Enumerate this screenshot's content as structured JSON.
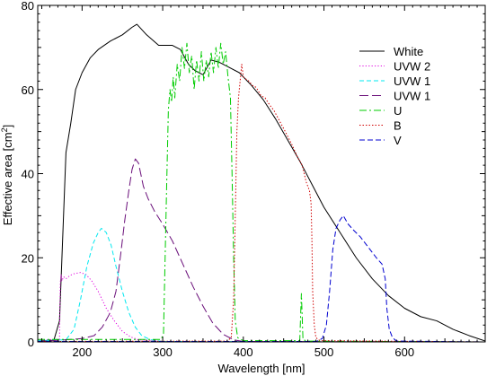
{
  "chart_data": {
    "type": "line",
    "xlabel": "Wavelength [nm]",
    "ylabel_main": "Effective area [cm",
    "ylabel_sup": "2",
    "ylabel_close": "]",
    "xlim": [
      145,
      700
    ],
    "ylim": [
      0,
      80
    ],
    "xticks": [
      200,
      300,
      400,
      500,
      600
    ],
    "yticks": [
      0,
      20,
      40,
      60,
      80
    ],
    "grid": false,
    "legend_position": "top-right",
    "series": [
      {
        "name": "White",
        "color": "#000000",
        "dash": "solid",
        "points": [
          [
            145,
            0.2
          ],
          [
            165,
            0.4
          ],
          [
            172,
            5
          ],
          [
            176,
            25
          ],
          [
            180,
            45
          ],
          [
            186,
            52
          ],
          [
            192,
            60
          ],
          [
            200,
            64
          ],
          [
            210,
            67.5
          ],
          [
            220,
            69.5
          ],
          [
            235,
            71.5
          ],
          [
            250,
            73
          ],
          [
            262,
            74.8
          ],
          [
            268,
            75.5
          ],
          [
            280,
            73
          ],
          [
            295,
            70.5
          ],
          [
            312,
            70.5
          ],
          [
            322,
            69.5
          ],
          [
            332,
            66
          ],
          [
            340,
            64.5
          ],
          [
            350,
            63.5
          ],
          [
            360,
            67
          ],
          [
            370,
            66.5
          ],
          [
            380,
            65.5
          ],
          [
            395,
            64
          ],
          [
            410,
            61
          ],
          [
            425,
            57.5
          ],
          [
            440,
            53
          ],
          [
            455,
            48
          ],
          [
            470,
            43
          ],
          [
            485,
            37.5
          ],
          [
            500,
            32
          ],
          [
            520,
            26
          ],
          [
            540,
            20
          ],
          [
            560,
            15
          ],
          [
            580,
            11
          ],
          [
            600,
            8
          ],
          [
            620,
            6
          ],
          [
            640,
            5
          ],
          [
            660,
            3
          ],
          [
            680,
            1.5
          ],
          [
            700,
            0.2
          ]
        ]
      },
      {
        "name": "UVW 2",
        "color": "#e000e0",
        "dash": "1.2,2.2",
        "points": [
          [
            145,
            0.5
          ],
          [
            172,
            0.6
          ],
          [
            173,
            14
          ],
          [
            174,
            16
          ],
          [
            175,
            14.5
          ],
          [
            177,
            15.5
          ],
          [
            180,
            15
          ],
          [
            185,
            15.8
          ],
          [
            190,
            16.2
          ],
          [
            198,
            16.5
          ],
          [
            205,
            16
          ],
          [
            212,
            14.5
          ],
          [
            220,
            12
          ],
          [
            230,
            8
          ],
          [
            240,
            5
          ],
          [
            250,
            2.5
          ],
          [
            260,
            1.2
          ],
          [
            270,
            0.5
          ],
          [
            300,
            0.1
          ],
          [
            700,
            0
          ]
        ]
      },
      {
        "name": "UVW 1",
        "color": "#00e8f0",
        "dash": "5,3",
        "points": [
          [
            145,
            0.3
          ],
          [
            180,
            0.5
          ],
          [
            190,
            3
          ],
          [
            198,
            10
          ],
          [
            206,
            18
          ],
          [
            214,
            23.5
          ],
          [
            220,
            26
          ],
          [
            224,
            27
          ],
          [
            230,
            26
          ],
          [
            236,
            23
          ],
          [
            242,
            18
          ],
          [
            250,
            12
          ],
          [
            258,
            7
          ],
          [
            266,
            3.5
          ],
          [
            274,
            1.5
          ],
          [
            285,
            0.5
          ],
          [
            300,
            0.1
          ],
          [
            700,
            0
          ]
        ]
      },
      {
        "name": "UVW 1",
        "color": "#6a0f7a",
        "dash": "10,4",
        "points": [
          [
            145,
            0.1
          ],
          [
            180,
            0.5
          ],
          [
            200,
            0.8
          ],
          [
            215,
            1.5
          ],
          [
            225,
            3.5
          ],
          [
            235,
            7
          ],
          [
            242,
            12
          ],
          [
            248,
            21
          ],
          [
            253,
            29
          ],
          [
            258,
            36
          ],
          [
            262,
            41
          ],
          [
            266,
            43.5
          ],
          [
            270,
            42.5
          ],
          [
            276,
            37
          ],
          [
            282,
            34
          ],
          [
            290,
            31
          ],
          [
            300,
            28
          ],
          [
            312,
            24
          ],
          [
            325,
            18.5
          ],
          [
            338,
            13
          ],
          [
            350,
            8.5
          ],
          [
            362,
            4.5
          ],
          [
            375,
            1.8
          ],
          [
            388,
            0.5
          ],
          [
            400,
            0.1
          ],
          [
            700,
            0
          ]
        ]
      },
      {
        "name": "U",
        "color": "#00cc00",
        "dash": "8,3,2,3",
        "points": [
          [
            145,
            0.6
          ],
          [
            298,
            0.6
          ],
          [
            301,
            2
          ],
          [
            303,
            20
          ],
          [
            305,
            38
          ],
          [
            307,
            55
          ],
          [
            309,
            60
          ],
          [
            311,
            57
          ],
          [
            313,
            63
          ],
          [
            315,
            58
          ],
          [
            318,
            66
          ],
          [
            321,
            62
          ],
          [
            324,
            70
          ],
          [
            327,
            65
          ],
          [
            330,
            71
          ],
          [
            333,
            64
          ],
          [
            336,
            68
          ],
          [
            339,
            60
          ],
          [
            342,
            67
          ],
          [
            345,
            62
          ],
          [
            348,
            69
          ],
          [
            351,
            62
          ],
          [
            354,
            67
          ],
          [
            357,
            63
          ],
          [
            360,
            69
          ],
          [
            363,
            64
          ],
          [
            366,
            70
          ],
          [
            369,
            65
          ],
          [
            372,
            71
          ],
          [
            375,
            66
          ],
          [
            378,
            69
          ],
          [
            381,
            63
          ],
          [
            384,
            58
          ],
          [
            386,
            40
          ],
          [
            388,
            20
          ],
          [
            390,
            5
          ],
          [
            393,
            1
          ],
          [
            400,
            0.3
          ],
          [
            470,
            0.3
          ],
          [
            472,
            11.5
          ],
          [
            474,
            0.5
          ],
          [
            480,
            0.2
          ],
          [
            700,
            0
          ]
        ]
      },
      {
        "name": "B",
        "color": "#d00000",
        "dash": "1.5,2",
        "points": [
          [
            145,
            0.1
          ],
          [
            380,
            0.2
          ],
          [
            385,
            1
          ],
          [
            388,
            10
          ],
          [
            390,
            30
          ],
          [
            392,
            50
          ],
          [
            394,
            58
          ],
          [
            396,
            62
          ],
          [
            398,
            66
          ],
          [
            400,
            63
          ],
          [
            403,
            62.5
          ],
          [
            407,
            62
          ],
          [
            411,
            61
          ],
          [
            416,
            60.5
          ],
          [
            422,
            58.5
          ],
          [
            427,
            58
          ],
          [
            432,
            56.5
          ],
          [
            438,
            55
          ],
          [
            445,
            52.5
          ],
          [
            452,
            50
          ],
          [
            460,
            47
          ],
          [
            467,
            44
          ],
          [
            473,
            42
          ],
          [
            478,
            38
          ],
          [
            482,
            36
          ],
          [
            484,
            33
          ],
          [
            485,
            25
          ],
          [
            486,
            12
          ],
          [
            488,
            4
          ],
          [
            490,
            1
          ],
          [
            495,
            0.3
          ],
          [
            700,
            0
          ]
        ]
      },
      {
        "name": "V",
        "color": "#0000d0",
        "dash": "6,3",
        "points": [
          [
            145,
            0.1
          ],
          [
            490,
            0.1
          ],
          [
            498,
            0.8
          ],
          [
            503,
            4
          ],
          [
            507,
            12
          ],
          [
            511,
            22
          ],
          [
            515,
            27
          ],
          [
            520,
            29
          ],
          [
            524,
            30
          ],
          [
            530,
            28
          ],
          [
            537,
            26.5
          ],
          [
            545,
            25
          ],
          [
            555,
            22.5
          ],
          [
            565,
            20
          ],
          [
            572,
            18.5
          ],
          [
            576,
            15
          ],
          [
            578,
            8
          ],
          [
            581,
            3
          ],
          [
            585,
            1
          ],
          [
            590,
            0.2
          ],
          [
            700,
            0
          ]
        ]
      }
    ]
  }
}
